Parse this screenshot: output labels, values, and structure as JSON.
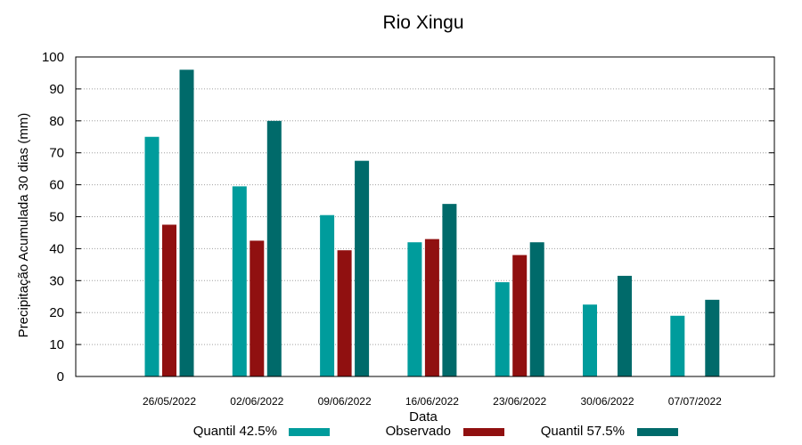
{
  "chart_data": {
    "type": "bar",
    "title": "Rio Xingu",
    "xlabel": "Data",
    "ylabel": "Precipitação Acumulada 30 dias (mm)",
    "ylim": [
      0,
      100
    ],
    "yticks": [
      0,
      10,
      20,
      30,
      40,
      50,
      60,
      70,
      80,
      90,
      100
    ],
    "grid": true,
    "legend_position": "bottom",
    "categories": [
      "26/05/2022",
      "02/06/2022",
      "09/06/2022",
      "16/06/2022",
      "23/06/2022",
      "30/06/2022",
      "07/07/2022"
    ],
    "series": [
      {
        "name": "Quantil 42.5%",
        "color": "#009c9c",
        "values": [
          75,
          59.5,
          50.5,
          42,
          29.5,
          22.5,
          19
        ]
      },
      {
        "name": "Observado",
        "color": "#901010",
        "values": [
          47.5,
          42.5,
          39.5,
          43,
          38,
          null,
          null
        ]
      },
      {
        "name": "Quantil 57.5%",
        "color": "#006a6a",
        "values": [
          96,
          80,
          67.5,
          54,
          42,
          31.5,
          24
        ]
      }
    ]
  }
}
